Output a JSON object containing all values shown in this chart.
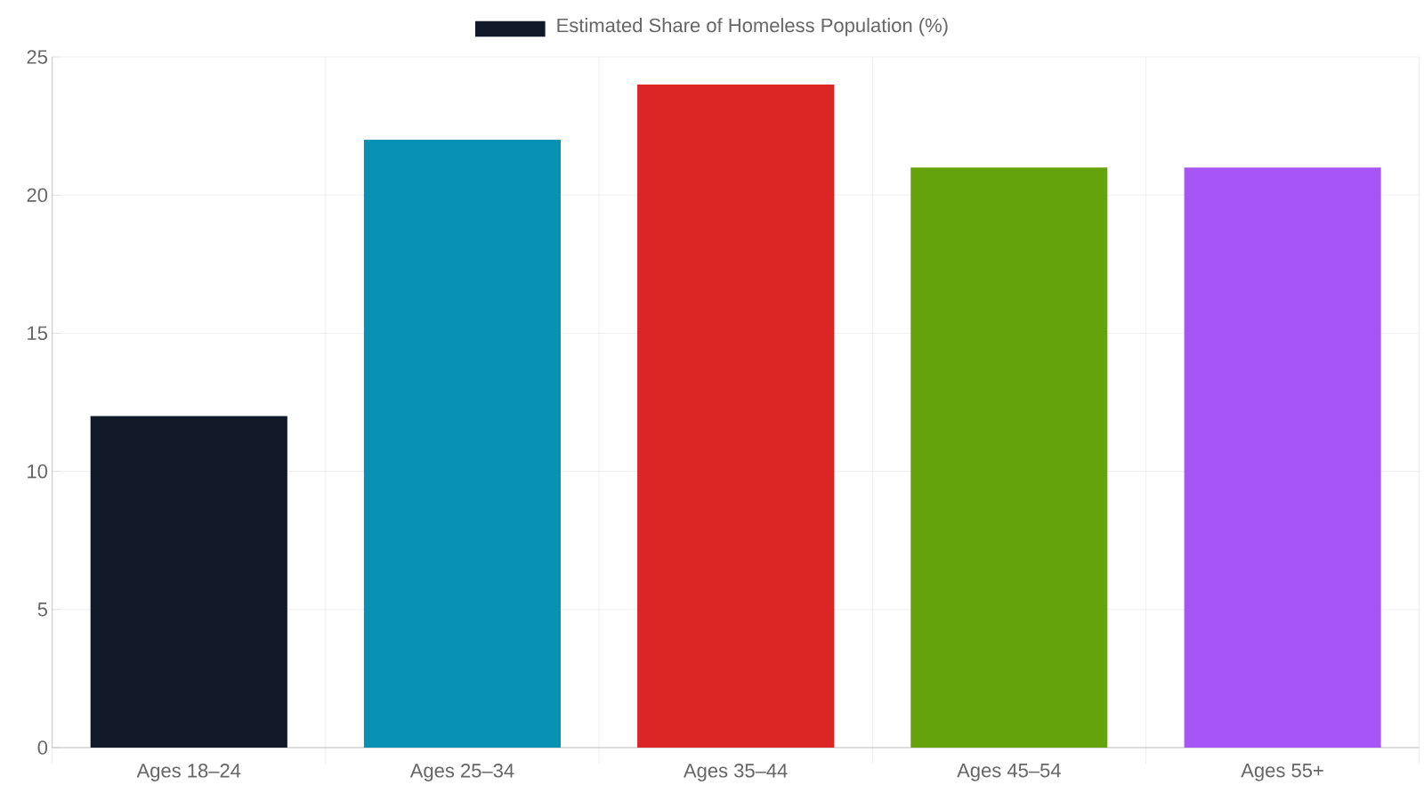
{
  "chart_data": {
    "type": "bar",
    "categories": [
      "Ages 18–24",
      "Ages 25–34",
      "Ages 35–44",
      "Ages 45–54",
      "Ages 55+"
    ],
    "series": [
      {
        "name": "Estimated Share of Homeless Population (%)",
        "color": "#111827",
        "colors": [
          "#111827",
          "#0891b2",
          "#dc2626",
          "#65a30d",
          "#a855f7"
        ],
        "values": [
          12,
          22,
          24,
          21,
          21
        ]
      }
    ],
    "ylim": [
      0,
      25
    ],
    "yticks": [
      0,
      5,
      10,
      15,
      20,
      25
    ],
    "grid": true,
    "legend": "top"
  }
}
